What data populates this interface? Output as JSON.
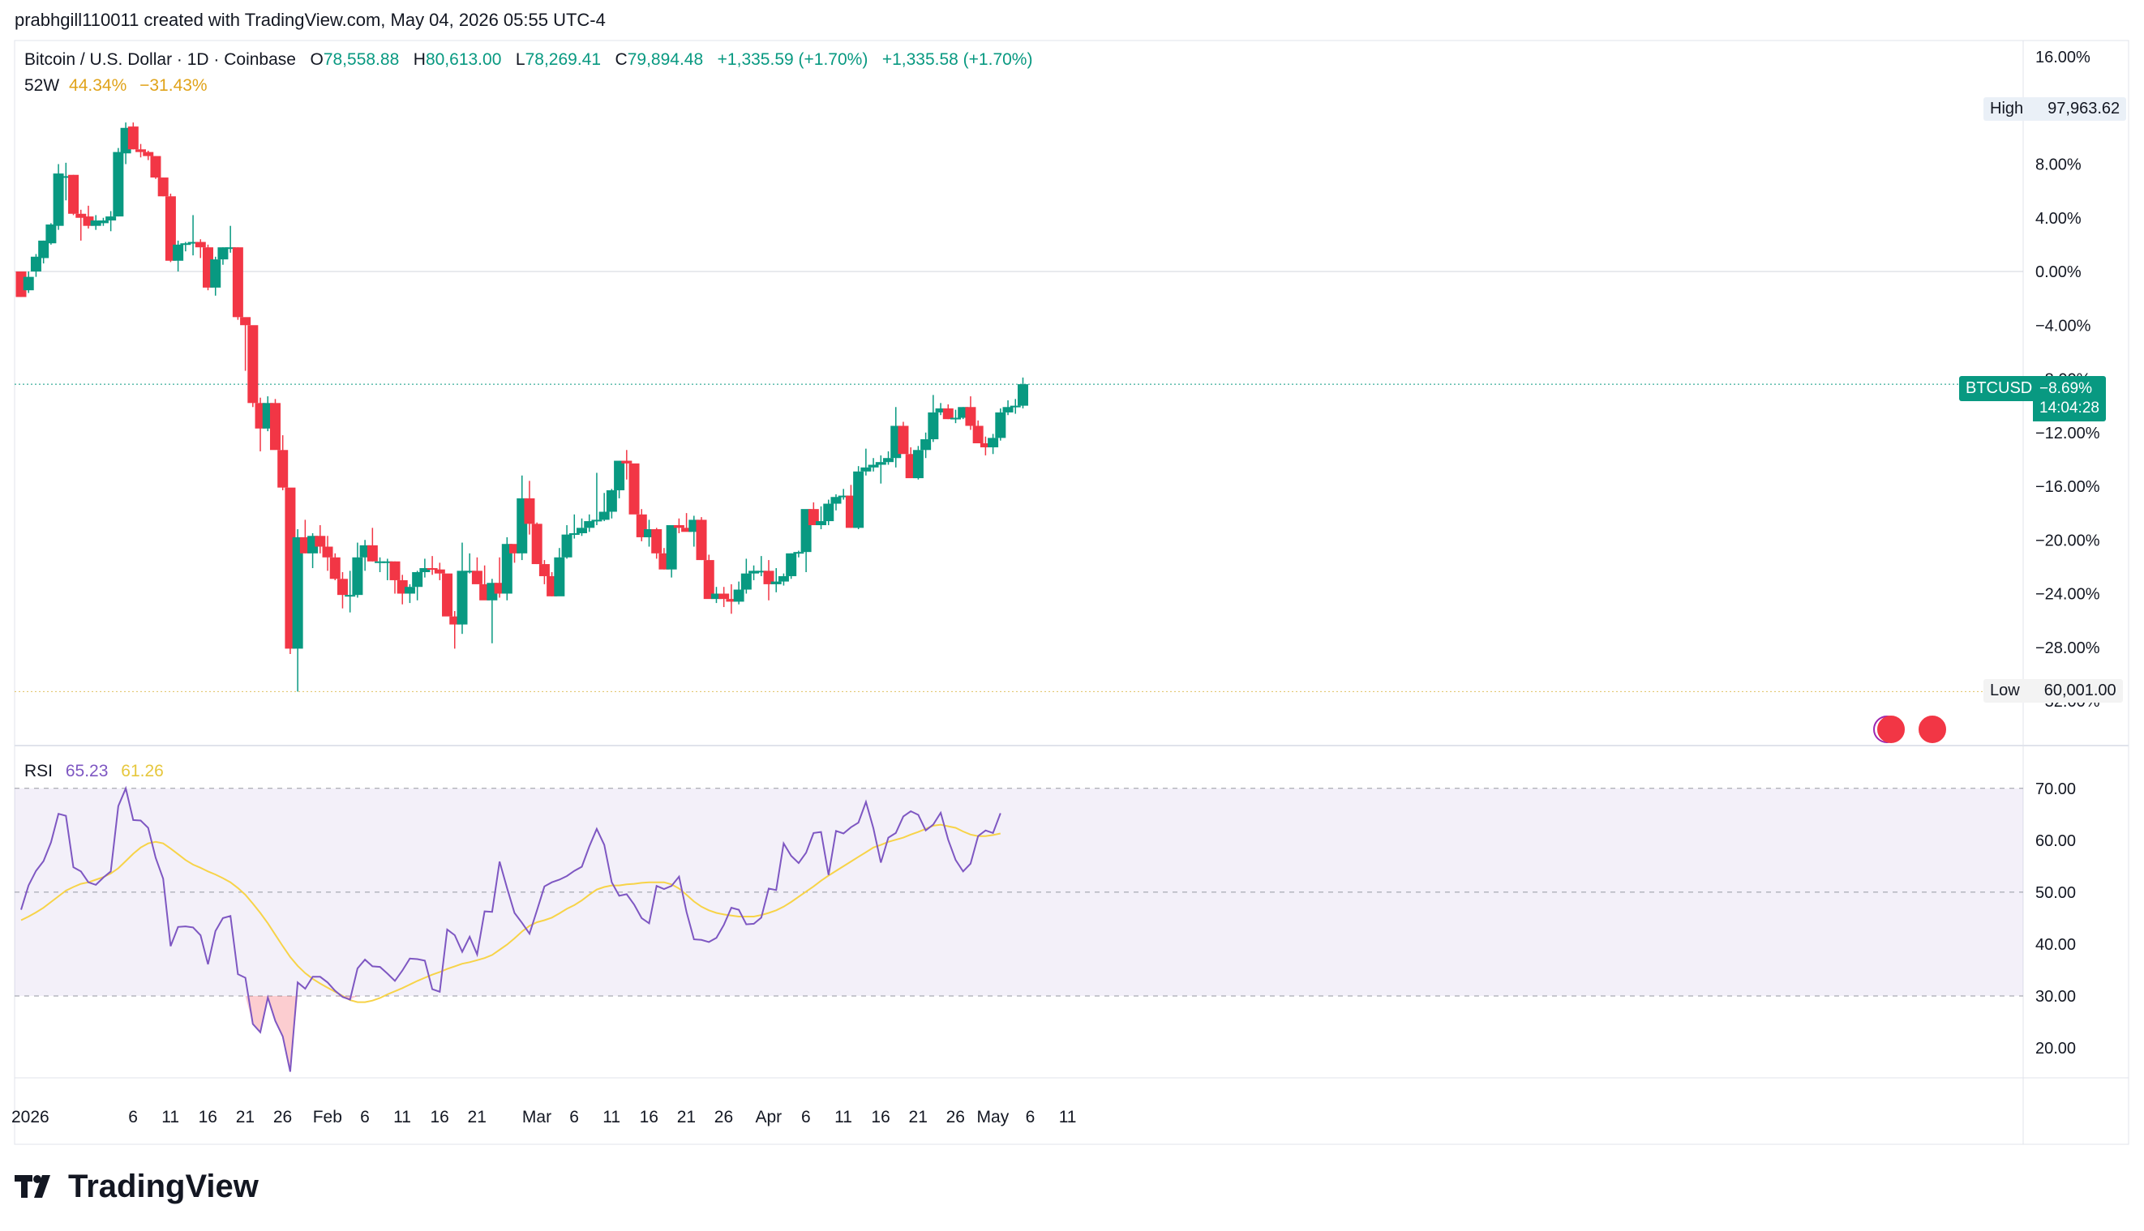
{
  "header": {
    "author_line": "prabhgill110011 created with TradingView.com, May 04, 2026 05:55 UTC-4"
  },
  "legend": {
    "symbol": "Bitcoin / U.S. Dollar · 1D · Coinbase",
    "o_label": "O",
    "o": "78,558.88",
    "h_label": "H",
    "h": "80,613.00",
    "l_label": "L",
    "l": "78,269.41",
    "c_label": "C",
    "c": "79,894.48",
    "change1": "+1,335.59 (+1.70%)",
    "change2": "+1,335.58 (+1.70%)",
    "w52_label": "52W",
    "w52_high": "44.34%",
    "w52_low": "−31.43%"
  },
  "tags": {
    "high_label": "High",
    "high_value": "97,963.62",
    "low_label": "Low",
    "low_value": "60,001.00",
    "symbol": "BTCUSD",
    "pct": "−8.69%",
    "countdown": "14:04:28"
  },
  "rsi_legend": {
    "label": "RSI",
    "rsi": "65.23",
    "ma": "61.26"
  },
  "brand": "TradingView",
  "colors": {
    "up": "#089981",
    "down": "#f23645",
    "rsi": "#7e57c2",
    "rsi_ma": "#f7d348",
    "band": "#7e57c2"
  },
  "chart_data": [
    {
      "type": "candlestick",
      "title": "Bitcoin / U.S. Dollar · 1D · Coinbase",
      "y_scale": "percent from first bar",
      "ylim": [
        -32,
        16
      ],
      "yticks": [
        "16.00%",
        "8.00%",
        "4.00%",
        "0.00%",
        "−4.00%",
        "−8.00%",
        "−12.00%",
        "−16.00%",
        "−20.00%",
        "−24.00%",
        "−28.00%",
        "−32.00%"
      ],
      "x_tick_labels": [
        "2026",
        "6",
        "11",
        "16",
        "21",
        "26",
        "Feb",
        "6",
        "11",
        "16",
        "21",
        "Mar",
        "6",
        "11",
        "16",
        "21",
        "26",
        "Apr",
        "6",
        "11",
        "16",
        "21",
        "26",
        "May",
        "6",
        "11"
      ],
      "x_range_days": [
        "2026-01-01",
        "2026-05-14"
      ],
      "candles_percent_ohlc": [
        [
          0,
          -1.9,
          0.0,
          -1.9
        ],
        [
          -1.4,
          -1.6,
          0.0,
          -0.4
        ],
        [
          0.0,
          -0.4,
          1.3,
          1.1
        ],
        [
          1.0,
          0.6,
          2.3,
          2.3
        ],
        [
          2.1,
          2.0,
          3.6,
          3.5
        ],
        [
          3.4,
          3.1,
          8.0,
          7.3
        ],
        [
          7.0,
          5.3,
          8.1,
          7.1
        ],
        [
          7.2,
          4.2,
          7.2,
          4.3
        ],
        [
          4.3,
          2.3,
          4.6,
          4.0
        ],
        [
          4.1,
          3.2,
          4.9,
          3.4
        ],
        [
          3.4,
          3.1,
          4.2,
          3.8
        ],
        [
          3.6,
          3.4,
          4.0,
          3.8
        ],
        [
          3.8,
          3.0,
          4.5,
          4.1
        ],
        [
          4.1,
          4.1,
          9.2,
          8.9
        ],
        [
          8.8,
          8.0,
          11.1,
          10.7
        ],
        [
          10.8,
          9.1,
          11.1,
          9.1
        ],
        [
          9.1,
          8.5,
          9.5,
          8.9
        ],
        [
          8.9,
          8.3,
          9.0,
          8.6
        ],
        [
          8.6,
          6.9,
          8.6,
          7.0
        ],
        [
          7.0,
          5.6,
          7.0,
          5.6
        ],
        [
          5.6,
          0.7,
          5.8,
          0.8
        ],
        [
          0.8,
          0.0,
          2.3,
          2.0
        ],
        [
          2.0,
          1.5,
          2.2,
          2.1
        ],
        [
          2.1,
          1.2,
          4.2,
          2.2
        ],
        [
          2.2,
          1.0,
          2.4,
          1.8
        ],
        [
          1.8,
          -1.4,
          2.0,
          -1.2
        ],
        [
          -1.2,
          -1.8,
          1.1,
          0.9
        ],
        [
          0.9,
          0.5,
          1.8,
          1.8
        ],
        [
          1.8,
          1.4,
          3.4,
          1.8
        ],
        [
          1.8,
          -3.6,
          1.8,
          -3.4
        ],
        [
          -3.4,
          -7.4,
          -3.5,
          -4.0
        ],
        [
          -4.0,
          -10.1,
          -4.2,
          -9.8
        ],
        [
          -9.8,
          -13.4,
          -9.4,
          -11.7
        ],
        [
          -11.7,
          -11.9,
          -9.3,
          -9.8
        ],
        [
          -9.8,
          -13.2,
          -9.5,
          -13.3
        ],
        [
          -13.3,
          -16.3,
          -12.2,
          -16.1
        ],
        [
          -16.1,
          -28.5,
          -16.4,
          -28.1
        ],
        [
          -28.1,
          -31.3,
          -19.2,
          -19.8
        ],
        [
          -19.8,
          -21.0,
          -18.5,
          -21.0
        ],
        [
          -21.0,
          -22.1,
          -19.5,
          -19.7
        ],
        [
          -19.7,
          -21.0,
          -18.9,
          -20.5
        ],
        [
          -20.5,
          -22.3,
          -19.7,
          -21.3
        ],
        [
          -21.3,
          -23.0,
          -21.0,
          -22.9
        ],
        [
          -22.9,
          -25.1,
          -22.4,
          -24.1
        ],
        [
          -24.1,
          -25.4,
          -22.3,
          -24.1
        ],
        [
          -24.1,
          -24.3,
          -20.2,
          -21.3
        ],
        [
          -21.3,
          -22.3,
          -20.0,
          -20.4
        ],
        [
          -20.4,
          -21.6,
          -19.1,
          -21.6
        ],
        [
          -21.6,
          -22.4,
          -21.3,
          -21.6
        ],
        [
          -21.6,
          -23.0,
          -21.4,
          -21.6
        ],
        [
          -21.6,
          -24.0,
          -21.6,
          -23.0
        ],
        [
          -23.0,
          -24.8,
          -22.6,
          -24.0
        ],
        [
          -24.0,
          -24.7,
          -23.3,
          -23.5
        ],
        [
          -23.5,
          -24.5,
          -22.3,
          -22.4
        ],
        [
          -22.4,
          -22.8,
          -21.4,
          -22.1
        ],
        [
          -22.1,
          -22.6,
          -21.2,
          -22.2
        ],
        [
          -22.2,
          -23.0,
          -21.7,
          -22.5
        ],
        [
          -22.5,
          -25.1,
          -22.6,
          -25.7
        ],
        [
          -25.7,
          -28.1,
          -25.3,
          -26.3
        ],
        [
          -26.3,
          -27.0,
          -20.2,
          -22.3
        ],
        [
          -22.3,
          -22.5,
          -21.0,
          -22.3
        ],
        [
          -22.3,
          -22.9,
          -21.3,
          -23.3
        ],
        [
          -23.3,
          -23.5,
          -21.9,
          -24.5
        ],
        [
          -24.5,
          -27.7,
          -22.9,
          -23.2
        ],
        [
          -23.2,
          -24.3,
          -21.3,
          -24.0
        ],
        [
          -24.0,
          -24.5,
          -19.8,
          -20.3
        ],
        [
          -20.3,
          -21.7,
          -20.5,
          -21.0
        ],
        [
          -21.0,
          -21.5,
          -15.2,
          -16.9
        ],
        [
          -16.9,
          -19.6,
          -15.6,
          -18.8
        ],
        [
          -18.8,
          -21.8,
          -18.7,
          -21.8
        ],
        [
          -21.8,
          -23.3,
          -21.5,
          -22.7
        ],
        [
          -22.7,
          -24.2,
          -22.4,
          -24.2
        ],
        [
          -24.2,
          -24.0,
          -20.6,
          -21.3
        ],
        [
          -21.3,
          -21.4,
          -18.9,
          -19.6
        ],
        [
          -19.6,
          -19.9,
          -18.1,
          -19.5
        ],
        [
          -19.5,
          -19.7,
          -18.4,
          -19.1
        ],
        [
          -19.1,
          -19.4,
          -18.1,
          -18.6
        ],
        [
          -18.6,
          -18.9,
          -15.0,
          -18.5
        ],
        [
          -18.5,
          -18.6,
          -16.5,
          -17.9
        ],
        [
          -17.9,
          -18.4,
          -16.2,
          -16.3
        ],
        [
          -16.3,
          -16.9,
          -14.1,
          -14.1
        ],
        [
          -14.1,
          -15.5,
          -13.3,
          -14.3
        ],
        [
          -14.3,
          -16.5,
          -14.6,
          -18.1
        ],
        [
          -18.1,
          -20.1,
          -17.7,
          -19.8
        ],
        [
          -19.8,
          -20.5,
          -18.5,
          -19.2
        ],
        [
          -19.2,
          -21.4,
          -19.1,
          -21.0
        ],
        [
          -21.0,
          -22.2,
          -20.6,
          -22.2
        ],
        [
          -22.2,
          -22.8,
          -19.2,
          -18.9
        ],
        [
          -18.9,
          -19.5,
          -18.4,
          -19.1
        ],
        [
          -19.1,
          -19.2,
          -18.0,
          -19.4
        ],
        [
          -19.4,
          -20.5,
          -18.2,
          -18.5
        ],
        [
          -18.5,
          -21.5,
          -18.3,
          -21.5
        ],
        [
          -21.5,
          -24.3,
          -21.1,
          -24.4
        ],
        [
          -24.4,
          -24.7,
          -23.5,
          -24.0
        ],
        [
          -24.0,
          -25.0,
          -23.5,
          -24.4
        ],
        [
          -24.4,
          -25.5,
          -23.3,
          -24.6
        ],
        [
          -24.6,
          -24.8,
          -23.1,
          -23.7
        ],
        [
          -23.7,
          -24.0,
          -21.4,
          -22.5
        ],
        [
          -22.5,
          -23.0,
          -21.9,
          -22.3
        ],
        [
          -22.3,
          -22.7,
          -21.2,
          -22.3
        ],
        [
          -22.3,
          -24.5,
          -21.5,
          -23.3
        ],
        [
          -23.3,
          -23.9,
          -22.1,
          -23.1
        ],
        [
          -23.1,
          -23.4,
          -22.5,
          -22.7
        ],
        [
          -22.7,
          -22.9,
          -21.0,
          -21.0
        ],
        [
          -21.0,
          -21.3,
          -20.8,
          -20.9
        ],
        [
          -20.9,
          -22.4,
          -20.7,
          -17.7
        ],
        [
          -17.7,
          -18.6,
          -17.2,
          -18.9
        ],
        [
          -18.9,
          -19.2,
          -17.5,
          -18.6
        ],
        [
          -18.6,
          -18.9,
          -17.0,
          -17.3
        ],
        [
          -17.3,
          -17.8,
          -16.6,
          -16.8
        ],
        [
          -16.8,
          -17.0,
          -16.2,
          -16.7
        ],
        [
          -16.7,
          -19.1,
          -15.9,
          -19.1
        ],
        [
          -19.1,
          -19.2,
          -14.5,
          -14.9
        ],
        [
          -14.9,
          -15.2,
          -13.2,
          -14.6
        ],
        [
          -14.6,
          -14.9,
          -13.9,
          -14.4
        ],
        [
          -14.4,
          -15.8,
          -13.7,
          -14.2
        ],
        [
          -14.2,
          -14.4,
          -13.4,
          -13.9
        ],
        [
          -13.9,
          -14.6,
          -10.1,
          -11.5
        ],
        [
          -11.5,
          -13.5,
          -11.2,
          -13.6
        ],
        [
          -13.6,
          -15.3,
          -13.1,
          -15.4
        ],
        [
          -15.4,
          -15.5,
          -13.0,
          -13.3
        ],
        [
          -13.3,
          -13.9,
          -12.0,
          -12.5
        ],
        [
          -12.5,
          -12.7,
          -9.2,
          -10.5
        ],
        [
          -10.5,
          -10.7,
          -9.8,
          -10.2
        ],
        [
          -10.2,
          -11.0,
          -9.9,
          -11.0
        ],
        [
          -11.0,
          -11.3,
          -10.3,
          -10.9
        ],
        [
          -10.9,
          -11.0,
          -10.1,
          -10.1
        ],
        [
          -10.1,
          -11.8,
          -9.3,
          -11.5
        ],
        [
          -11.5,
          -12.7,
          -11.1,
          -12.8
        ],
        [
          -12.8,
          -13.7,
          -12.3,
          -13.1
        ],
        [
          -13.1,
          -13.6,
          -12.1,
          -12.4
        ],
        [
          -12.4,
          -12.6,
          -10.2,
          -10.5
        ],
        [
          -10.5,
          -10.7,
          -9.6,
          -10.1
        ],
        [
          -10.1,
          -10.6,
          -9.5,
          -10.0
        ],
        [
          -10.0,
          -10.2,
          -7.9,
          -8.4
        ]
      ]
    },
    {
      "type": "line",
      "title": "RSI",
      "ylim": [
        15,
        72
      ],
      "yticks": [
        "70.00",
        "60.00",
        "50.00",
        "40.00",
        "30.00",
        "20.00"
      ],
      "series": [
        {
          "name": "RSI",
          "values": [
            46.6,
            51.3,
            54.1,
            56.0,
            59.6,
            65.1,
            64.7,
            54.8,
            54.0,
            51.9,
            51.4,
            52.8,
            54.0,
            66.6,
            70.0,
            63.9,
            63.8,
            62.4,
            56.6,
            52.6,
            39.6,
            43.3,
            43.4,
            43.2,
            41.7,
            36.1,
            42.5,
            45.0,
            45.4,
            34.2,
            33.5,
            24.6,
            23.0,
            29.7,
            25.2,
            22.2,
            15.4,
            32.6,
            31.4,
            33.7,
            33.7,
            32.6,
            31.0,
            29.8,
            29.3,
            35.3,
            37.0,
            35.7,
            35.6,
            34.3,
            32.9,
            34.9,
            37.2,
            37.1,
            36.8,
            31.3,
            30.8,
            42.8,
            41.7,
            38.5,
            41.4,
            38.0,
            46.3,
            46.2,
            55.9,
            50.8,
            46.0,
            44.1,
            42.0,
            46.5,
            51.1,
            51.9,
            52.4,
            53.1,
            54.1,
            54.9,
            58.8,
            62.2,
            59.1,
            51.9,
            49.3,
            49.6,
            47.6,
            45.0,
            44.0,
            51.2,
            50.6,
            51.2,
            53.0,
            46.2,
            40.9,
            40.8,
            40.4,
            41.2,
            43.7,
            47.0,
            46.6,
            43.8,
            43.9,
            45.1,
            50.7,
            50.4,
            59.4,
            57.0,
            55.6,
            57.6,
            61.4,
            61.6,
            53.3,
            61.8,
            61.3,
            62.5,
            63.4,
            67.4,
            62.3,
            55.7,
            60.5,
            61.4,
            64.6,
            65.6,
            64.9,
            61.9,
            63.0,
            65.3,
            60.1,
            56.2,
            54.0,
            55.5,
            60.8,
            61.9,
            61.4,
            65.2
          ]
        },
        {
          "name": "RSI MA",
          "values": [
            44.6,
            45.3,
            46.1,
            47.0,
            48.1,
            49.2,
            50.3,
            51.0,
            51.6,
            51.9,
            52.4,
            52.9,
            53.6,
            54.6,
            56.0,
            57.4,
            58.6,
            59.4,
            59.7,
            59.4,
            58.4,
            57.3,
            56.2,
            55.3,
            54.7,
            54.0,
            53.4,
            52.7,
            51.9,
            50.8,
            49.5,
            47.8,
            46.0,
            44.0,
            41.8,
            39.6,
            37.5,
            35.8,
            34.4,
            33.3,
            32.4,
            31.6,
            30.8,
            30.0,
            29.2,
            28.8,
            28.8,
            29.1,
            29.6,
            30.3,
            30.9,
            31.5,
            32.2,
            32.9,
            33.5,
            34.1,
            34.6,
            35.2,
            35.7,
            36.2,
            36.5,
            36.9,
            37.3,
            37.9,
            38.9,
            39.9,
            41.1,
            42.4,
            43.5,
            44.2,
            44.6,
            45.1,
            45.9,
            46.8,
            47.5,
            48.4,
            49.5,
            50.5,
            51.0,
            51.3,
            51.3,
            51.5,
            51.6,
            51.8,
            51.9,
            51.9,
            51.9,
            51.5,
            50.7,
            49.5,
            48.2,
            47.2,
            46.5,
            46.0,
            45.7,
            45.5,
            45.3,
            45.3,
            45.3,
            45.6,
            46.0,
            46.5,
            47.2,
            48.1,
            49.1,
            50.1,
            51.1,
            52.2,
            53.2,
            54.1,
            55.0,
            55.9,
            56.8,
            57.7,
            58.6,
            59.1,
            59.7,
            60.1,
            60.5,
            61.1,
            61.6,
            62.2,
            62.8,
            63.0,
            62.7,
            62.4,
            61.7,
            61.1,
            60.8,
            60.8,
            61.0,
            61.3
          ]
        }
      ],
      "bands": {
        "upper": 70,
        "middle": 50,
        "lower": 30
      }
    }
  ]
}
